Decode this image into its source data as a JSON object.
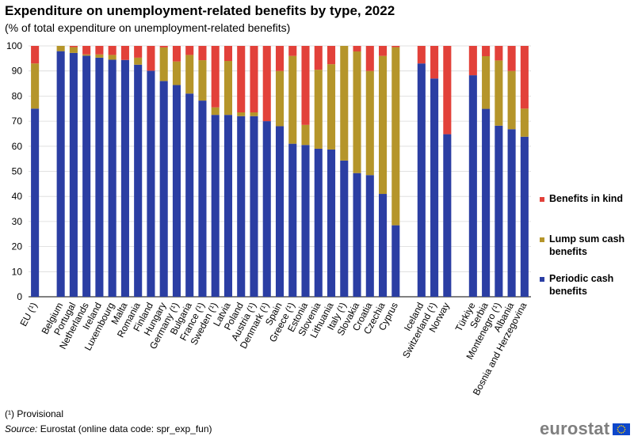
{
  "header": {
    "title": "Expenditure on unemployment-related benefits by type, 2022",
    "subtitle": "(% of total expenditure on unemployment-related  benefits)"
  },
  "footer": {
    "footnote": "(¹) Provisional",
    "source_label": "Source:",
    "source_text": " Eurostat (online data code: spr_exp_fun)",
    "logo": "eurostat"
  },
  "colors": {
    "periodic": "#2b3ea3",
    "lump_sum": "#b5952a",
    "in_kind": "#e2413a",
    "grid": "#d9d9d9",
    "flag": "#0e47cb",
    "flag_stars": "#ffd200"
  },
  "legend": {
    "in_kind": "Benefits in kind",
    "lump_sum": "Lump sum cash benefits",
    "periodic": "Periodic cash benefits"
  },
  "chart_data": {
    "type": "bar",
    "stacked": true,
    "title": "Expenditure on unemployment-related benefits by type, 2022",
    "ylabel": "% of total expenditure on unemployment-related benefits",
    "ylim": [
      0,
      100
    ],
    "yticks": [
      0,
      10,
      20,
      30,
      40,
      50,
      60,
      70,
      80,
      90,
      100
    ],
    "grid": true,
    "legend_position": "right",
    "groups": [
      {
        "categories": [
          "EU (¹)"
        ]
      },
      {
        "categories": [
          "Belgium",
          "Portugal",
          "Netherlands",
          "Ireland",
          "Luxembourg",
          "Malta",
          "Romania",
          "Finland",
          "Hungary",
          "Germany (¹)",
          "Bulgaria",
          "France (¹)",
          "Sweden (¹)",
          "Latvia",
          "Poland",
          "Austria (¹)",
          "Denmark (¹)",
          "Spain",
          "Greece (¹)",
          "Estonia",
          "Slovenia",
          "Lithuania",
          "Italy (¹)",
          "Slovakia",
          "Croatia",
          "Czechia",
          "Cyprus"
        ]
      },
      {
        "categories": [
          "Iceland",
          "Switzerland (¹)",
          "Norway"
        ]
      },
      {
        "categories": [
          "Türkiye",
          "Serbia",
          "Montenegro (¹)",
          "Albania",
          "Bosnia and Herzegovina"
        ]
      }
    ],
    "categories": [
      "EU (¹)",
      "Belgium",
      "Portugal",
      "Netherlands",
      "Ireland",
      "Luxembourg",
      "Malta",
      "Romania",
      "Finland",
      "Hungary",
      "Germany (¹)",
      "Bulgaria",
      "France (¹)",
      "Sweden (¹)",
      "Latvia",
      "Poland",
      "Austria (¹)",
      "Denmark (¹)",
      "Spain",
      "Greece (¹)",
      "Estonia",
      "Slovenia",
      "Lithuania",
      "Italy (¹)",
      "Slovakia",
      "Croatia",
      "Czechia",
      "Cyprus",
      "Iceland",
      "Switzerland (¹)",
      "Norway",
      "Türkiye",
      "Serbia",
      "Montenegro (¹)",
      "Albania",
      "Bosnia and Herzegovina"
    ],
    "series": [
      {
        "name": "Periodic cash benefits",
        "key": "periodic",
        "values": [
          75.0,
          97.9,
          97.2,
          96.1,
          95.3,
          94.5,
          94.4,
          92.5,
          90.1,
          86.0,
          84.4,
          81.0,
          78.2,
          72.5,
          72.5,
          72.0,
          72.0,
          70.0,
          68.0,
          61.0,
          60.5,
          59.0,
          58.7,
          54.3,
          49.3,
          48.5,
          41.0,
          28.5,
          93.0,
          87.0,
          64.8,
          88.3,
          74.9,
          68.2,
          66.8,
          63.8
        ]
      },
      {
        "name": "Lump sum cash benefits",
        "key": "lump_sum",
        "values": [
          18.0,
          2.1,
          2.3,
          0.5,
          1.3,
          1.9,
          0.0,
          2.8,
          0.0,
          13.4,
          9.4,
          15.4,
          16.1,
          3.0,
          21.5,
          1.5,
          1.5,
          0.0,
          22.0,
          35.0,
          8.0,
          31.5,
          34.0,
          45.7,
          48.5,
          41.5,
          55.0,
          71.0,
          0.0,
          0.0,
          0.0,
          0.0,
          21.0,
          26.0,
          23.2,
          11.2
        ]
      },
      {
        "name": "Benefits in kind",
        "key": "in_kind",
        "values": [
          7.0,
          0.0,
          0.5,
          3.4,
          3.4,
          3.6,
          5.6,
          4.7,
          9.9,
          0.6,
          6.2,
          3.6,
          5.7,
          24.5,
          6.0,
          26.5,
          26.5,
          30.0,
          10.0,
          4.0,
          31.5,
          9.5,
          7.3,
          0.0,
          2.2,
          10.0,
          4.0,
          0.5,
          7.0,
          13.0,
          35.2,
          11.7,
          4.1,
          5.8,
          10.0,
          25.0
        ]
      }
    ]
  }
}
